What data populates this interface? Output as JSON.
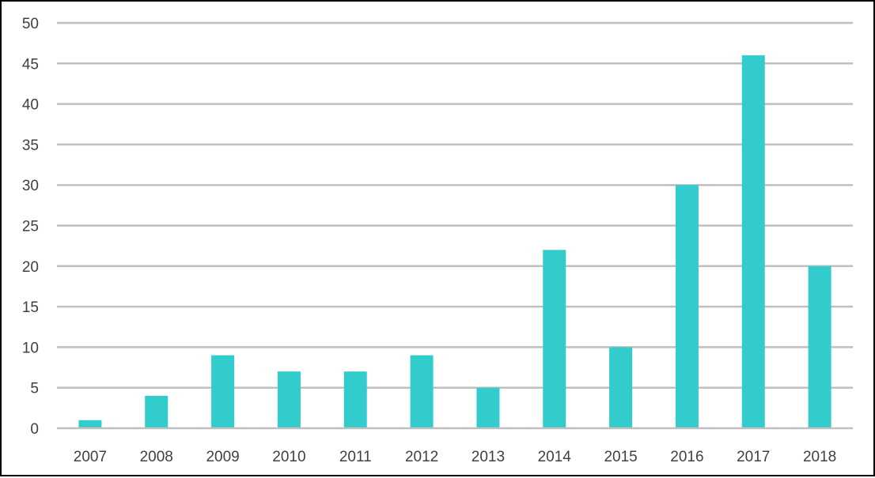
{
  "chart_data": {
    "type": "bar",
    "categories": [
      "2007",
      "2008",
      "2009",
      "2010",
      "2011",
      "2012",
      "2013",
      "2014",
      "2015",
      "2016",
      "2017",
      "2018"
    ],
    "values": [
      1,
      4,
      9,
      7,
      7,
      9,
      5,
      22,
      10,
      30,
      46,
      20
    ],
    "title": "",
    "xlabel": "",
    "ylabel": "",
    "ylim": [
      0,
      50
    ],
    "yticks": [
      "0",
      "5",
      "10",
      "15",
      "20",
      "25",
      "30",
      "35",
      "40",
      "45",
      "50"
    ],
    "grid": true,
    "legend": "none",
    "colors": {
      "bar": "#33CCCC",
      "grid": "#BFBFBF",
      "axis": "#BFBFBF",
      "text": "#404040"
    }
  }
}
